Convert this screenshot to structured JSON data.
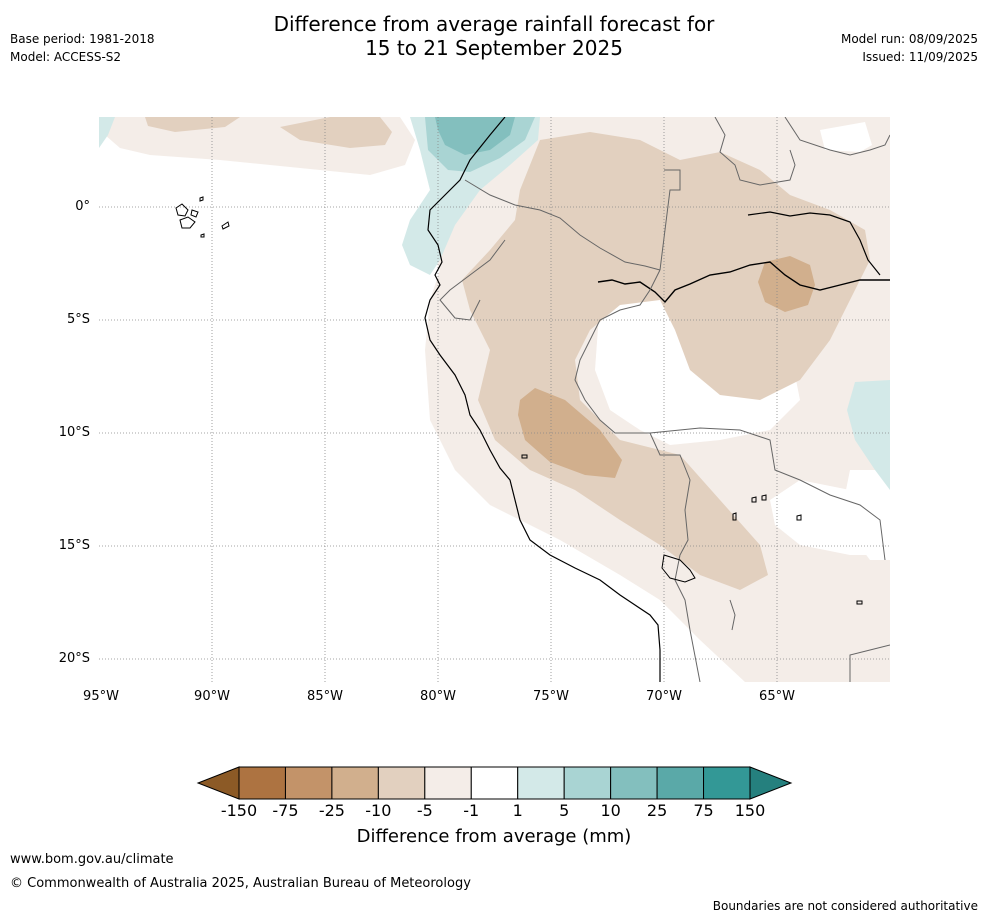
{
  "header": {
    "title_line1": "Difference from average rainfall forecast for",
    "title_line2": "15 to 21 September 2025",
    "base_period": "Base period: 1981-2018",
    "model": "Model: ACCESS-S2",
    "model_run": "Model run: 08/09/2025",
    "issued": "Issued: 11/09/2025"
  },
  "map": {
    "lat_labels": [
      "0°",
      "5°S",
      "10°S",
      "15°S",
      "20°S"
    ],
    "lon_labels": [
      "95°W",
      "90°W",
      "85°W",
      "80°W",
      "75°W",
      "70°W",
      "65°W"
    ]
  },
  "colorbar": {
    "title": "Difference from average (mm)",
    "ticks": [
      "-150",
      "-75",
      "-25",
      "-10",
      "-5",
      "-1",
      "1",
      "5",
      "10",
      "25",
      "75",
      "150"
    ],
    "colors": [
      "#8c5a26",
      "#ad7341",
      "#c39369",
      "#d1af8d",
      "#e2d0bf",
      "#f4ede8",
      "#ffffff",
      "#d3e9e8",
      "#a9d4d3",
      "#83bfbe",
      "#5aa9a8",
      "#339896",
      "#25807e"
    ]
  },
  "footer": {
    "url": "www.bom.gov.au/climate",
    "copyright": "© Commonwealth of Australia 2025, Australian Bureau of Meteorology",
    "disclaimer": "Boundaries are not considered authoritative"
  }
}
